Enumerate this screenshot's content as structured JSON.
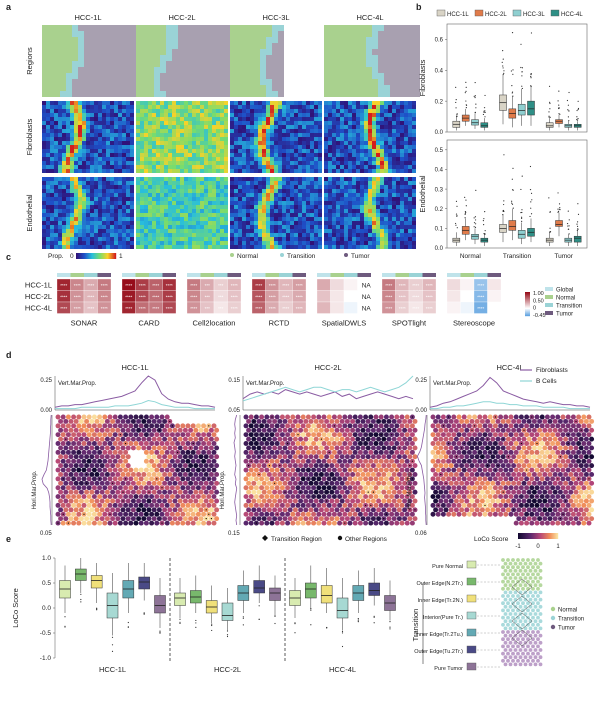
{
  "panel_letters": [
    "a",
    "b",
    "c",
    "d",
    "e"
  ],
  "colors": {
    "hcc1": "#d9d4c6",
    "hcc2": "#e07b4a",
    "hcc3": "#8fcfd0",
    "hcc4": "#2e8f86",
    "normal": "#a9d18e",
    "transition": "#9ad3d6",
    "tumor": "#6e5a7e",
    "global": "#bfe3ea"
  },
  "panel_a": {
    "columns": [
      "HCC-1L",
      "HCC-2L",
      "HCC-3L",
      "HCC-4L"
    ],
    "rows": [
      "Regions",
      "Fibroblasts",
      "Endothelial"
    ],
    "colorbar_label": "Prop.",
    "colorbar_min": "0",
    "colorbar_max": "1",
    "legend": [
      "Normal",
      "Transition",
      "Tumor"
    ]
  },
  "chart_data": [
    {
      "id": "panel_b",
      "type": "boxplot",
      "legend": [
        "HCC-1L",
        "HCC-2L",
        "HCC-3L",
        "HCC-4L"
      ],
      "categories": [
        "Normal",
        "Transition",
        "Tumor"
      ],
      "subplots": [
        {
          "ylabel": "Fibroblasts",
          "ylim": [
            0,
            0.7
          ],
          "yticks": [
            "0.0",
            "0.2",
            "0.4",
            "0.6"
          ],
          "boxes": [
            [
              [
                0.01,
                0.03,
                0.05,
                0.07,
                0.1
              ],
              [
                0.04,
                0.07,
                0.09,
                0.11,
                0.15
              ],
              [
                0.02,
                0.045,
                0.06,
                0.08,
                0.12
              ],
              [
                0.01,
                0.03,
                0.04,
                0.06,
                0.09
              ]
            ],
            [
              [
                0.05,
                0.14,
                0.19,
                0.24,
                0.37
              ],
              [
                0.03,
                0.09,
                0.12,
                0.15,
                0.23
              ],
              [
                0.04,
                0.11,
                0.14,
                0.18,
                0.28
              ],
              [
                0.04,
                0.11,
                0.15,
                0.2,
                0.29
              ]
            ],
            [
              [
                0.01,
                0.03,
                0.04,
                0.06,
                0.09
              ],
              [
                0.03,
                0.055,
                0.07,
                0.08,
                0.11
              ],
              [
                0.01,
                0.03,
                0.04,
                0.05,
                0.07
              ],
              [
                0.01,
                0.03,
                0.04,
                0.05,
                0.07
              ]
            ]
          ]
        },
        {
          "ylabel": "Endothelial",
          "ylim": [
            0,
            0.55
          ],
          "yticks": [
            "0.0",
            "0.1",
            "0.2",
            "0.3",
            "0.4",
            "0.5"
          ],
          "boxes": [
            [
              [
                0.01,
                0.03,
                0.04,
                0.05,
                0.08
              ],
              [
                0.04,
                0.07,
                0.09,
                0.11,
                0.15
              ],
              [
                0.02,
                0.045,
                0.06,
                0.07,
                0.1
              ],
              [
                0.01,
                0.03,
                0.04,
                0.05,
                0.07
              ]
            ],
            [
              [
                0.03,
                0.08,
                0.1,
                0.12,
                0.17
              ],
              [
                0.04,
                0.09,
                0.11,
                0.14,
                0.2
              ],
              [
                0.02,
                0.05,
                0.07,
                0.09,
                0.13
              ],
              [
                0.03,
                0.06,
                0.08,
                0.1,
                0.15
              ]
            ],
            [
              [
                0.01,
                0.03,
                0.04,
                0.05,
                0.08
              ],
              [
                0.06,
                0.11,
                0.12,
                0.14,
                0.18
              ],
              [
                0.01,
                0.03,
                0.04,
                0.05,
                0.07
              ],
              [
                0.01,
                0.03,
                0.05,
                0.06,
                0.09
              ]
            ]
          ]
        }
      ]
    },
    {
      "id": "panel_c",
      "type": "heatmap",
      "methods": [
        "SONAR",
        "CARD",
        "Cell2location",
        "RCTD",
        "SpatialDWLS",
        "SPOTlight",
        "Stereoscope"
      ],
      "rows": [
        "HCC-1L",
        "HCC-2L",
        "HCC-4L"
      ],
      "groups": [
        "Global",
        "Normal",
        "Transition",
        "Tumor"
      ],
      "colorbar_ticks": [
        "1.00",
        "0.50",
        "0",
        "-0.45"
      ],
      "na_label": "NA",
      "values": [
        [
          [
            0.9,
            0.5,
            0.35,
            0.55
          ],
          [
            0.85,
            0.45,
            0.3,
            0.5
          ],
          [
            0.75,
            0.4,
            0.25,
            0.45
          ]
        ],
        [
          [
            1.0,
            0.8,
            0.65,
            0.85
          ],
          [
            0.95,
            0.75,
            0.6,
            0.8
          ],
          [
            0.9,
            0.6,
            0.55,
            0.75
          ]
        ],
        [
          [
            0.55,
            0.35,
            0.2,
            0.3
          ],
          [
            0.5,
            0.3,
            0.15,
            0.25
          ],
          [
            0.45,
            0.25,
            0.1,
            0.2
          ]
        ],
        [
          [
            0.8,
            0.45,
            0.3,
            0.4
          ],
          [
            0.7,
            0.4,
            0.25,
            0.35
          ],
          [
            0.65,
            0.35,
            0.2,
            0.3
          ]
        ],
        [
          [
            0.35,
            0.15,
            0.05,
            null
          ],
          [
            0.25,
            0.1,
            0.0,
            null
          ],
          [
            0.3,
            0.1,
            -0.05,
            null
          ]
        ],
        [
          [
            0.55,
            0.3,
            0.2,
            0.3
          ],
          [
            0.5,
            0.25,
            0.15,
            0.25
          ],
          [
            0.45,
            0.2,
            0.1,
            0.2
          ]
        ],
        [
          [
            0.15,
            0.05,
            -0.3,
            0.1
          ],
          [
            0.1,
            0.0,
            -0.35,
            0.05
          ],
          [
            0.05,
            -0.05,
            -0.4,
            0.0
          ]
        ]
      ],
      "stars": [
        [
          [
            "****",
            "****",
            "****",
            "****"
          ],
          [
            "****",
            "****",
            "****",
            "****"
          ],
          [
            "****",
            "****",
            "****",
            "****"
          ]
        ],
        [
          [
            "****",
            "****",
            "****",
            "****"
          ],
          [
            "****",
            "****",
            "****",
            "****"
          ],
          [
            "****",
            "****",
            "****",
            "****"
          ]
        ],
        [
          [
            "****",
            "***",
            "***",
            "****"
          ],
          [
            "****",
            "***",
            "***",
            "****"
          ],
          [
            "****",
            "***",
            "***",
            "****"
          ]
        ],
        [
          [
            "****",
            "****",
            "****",
            "****"
          ],
          [
            "****",
            "****",
            "****",
            "****"
          ],
          [
            "****",
            "****",
            "****",
            "****"
          ]
        ],
        [
          [
            "",
            "",
            "",
            ""
          ],
          [
            "",
            "",
            "",
            ""
          ],
          [
            "",
            "",
            "",
            ""
          ]
        ],
        [
          [
            "****",
            "****",
            "****",
            "****"
          ],
          [
            "****",
            "****",
            "****",
            "****"
          ],
          [
            "****",
            "****",
            "****",
            "****"
          ]
        ],
        [
          [
            "",
            "",
            "****",
            ""
          ],
          [
            "",
            "",
            "****",
            ""
          ],
          [
            "",
            "",
            "****",
            ""
          ]
        ]
      ]
    },
    {
      "id": "panel_d",
      "type": "line+spatial",
      "samples": [
        "HCC-1L",
        "HCC-2L",
        "HCC-4L"
      ],
      "top_label": "Vert.Mar.Prop.",
      "side_label": "Hori.Mar.Prop.",
      "legend": [
        "Fibroblasts",
        "B Cells"
      ],
      "ytop": [
        [
          "0.25",
          "0.00"
        ],
        [
          "0.15",
          "0.05"
        ],
        [
          "0.25",
          "0.00"
        ]
      ],
      "xside": [
        "0.05",
        "0.15",
        "0.06"
      ],
      "bottom_legend": [
        "Transition Region",
        "Other Regions"
      ],
      "colorbar_label": "LoCo Score",
      "colorbar_ticks": [
        "-1",
        "0",
        "1"
      ],
      "fib_curves": [
        [
          0.02,
          0.03,
          0.03,
          0.04,
          0.04,
          0.05,
          0.06,
          0.07,
          0.08,
          0.09,
          0.1,
          0.12,
          0.14,
          0.2,
          0.26,
          0.22,
          0.12,
          0.08,
          0.06,
          0.05,
          0.05,
          0.04,
          0.03,
          0.03,
          0.02
        ],
        [
          0.05,
          0.07,
          0.08,
          0.07,
          0.08,
          0.07,
          0.09,
          0.08,
          0.07,
          0.08,
          0.07,
          0.06,
          0.07,
          0.08,
          0.06,
          0.07,
          0.05,
          0.06,
          0.07,
          0.08,
          0.07,
          0.06,
          0.05,
          0.06,
          0.05
        ],
        [
          0.02,
          0.03,
          0.05,
          0.06,
          0.08,
          0.1,
          0.12,
          0.14,
          0.18,
          0.24,
          0.2,
          0.14,
          0.12,
          0.1,
          0.08,
          0.07,
          0.06,
          0.05,
          0.06,
          0.05,
          0.04,
          0.04,
          0.03,
          0.03,
          0.02
        ]
      ],
      "b_curves": [
        [
          0.01,
          0.01,
          0.01,
          0.01,
          0.02,
          0.02,
          0.02,
          0.02,
          0.02,
          0.03,
          0.03,
          0.03,
          0.04,
          0.05,
          0.07,
          0.06,
          0.04,
          0.03,
          0.02,
          0.02,
          0.02,
          0.01,
          0.01,
          0.01,
          0.01
        ],
        [
          0.04,
          0.05,
          0.06,
          0.07,
          0.08,
          0.09,
          0.1,
          0.09,
          0.08,
          0.09,
          0.1,
          0.1,
          0.09,
          0.08,
          0.09,
          0.09,
          0.08,
          0.09,
          0.1,
          0.09,
          0.08,
          0.09,
          0.1,
          0.12,
          0.15
        ],
        [
          0.01,
          0.01,
          0.02,
          0.02,
          0.03,
          0.03,
          0.04,
          0.05,
          0.06,
          0.06,
          0.05,
          0.05,
          0.04,
          0.04,
          0.03,
          0.03,
          0.03,
          0.02,
          0.02,
          0.02,
          0.02,
          0.01,
          0.01,
          0.01,
          0.01
        ]
      ]
    },
    {
      "id": "panel_e",
      "type": "boxplot",
      "ylabel": "LoCo Score",
      "ylim": [
        -1.0,
        1.0
      ],
      "yticks": [
        "1.0",
        "0.5",
        "0.0",
        "-0.5",
        "-1.0"
      ],
      "groups": [
        "HCC-1L",
        "HCC-2L",
        "HCC-4L"
      ],
      "legend_title": "Transition",
      "categories": [
        "Pure Normal",
        "Outer Edge(N.2Tr.)",
        "Inner Edge(Tr.2N.)",
        "Interior(Pure Tr.)",
        "Inner Edge(Tr.2Tu.)",
        "Outer Edge(Tu.2Tr.)",
        "Pure Tumor"
      ],
      "box_colors": [
        "#d8ebb0",
        "#78b86c",
        "#f0e07a",
        "#a7d9d3",
        "#63a9b4",
        "#4a4a86",
        "#8d7397"
      ],
      "region_legend": [
        "Normal",
        "Transition",
        "Tumor"
      ],
      "boxes": [
        [
          [
            -0.1,
            0.2,
            0.38,
            0.55,
            0.85
          ],
          [
            0.3,
            0.55,
            0.68,
            0.78,
            1.0
          ],
          [
            0.1,
            0.4,
            0.55,
            0.65,
            0.9
          ],
          [
            -0.55,
            -0.2,
            0.05,
            0.3,
            0.7
          ],
          [
            -0.1,
            0.2,
            0.38,
            0.55,
            0.9
          ],
          [
            0.15,
            0.38,
            0.52,
            0.62,
            0.9
          ],
          [
            -0.4,
            -0.1,
            0.05,
            0.25,
            0.6
          ]
        ],
        [
          [
            -0.2,
            0.05,
            0.2,
            0.3,
            0.6
          ],
          [
            -0.1,
            0.1,
            0.22,
            0.35,
            0.65
          ],
          [
            -0.3,
            -0.1,
            0.02,
            0.15,
            0.45
          ],
          [
            -0.45,
            -0.25,
            -0.15,
            0.1,
            0.4
          ],
          [
            -0.1,
            0.15,
            0.3,
            0.45,
            0.75
          ],
          [
            0.1,
            0.3,
            0.4,
            0.55,
            0.85
          ],
          [
            -0.15,
            0.15,
            0.3,
            0.4,
            0.65
          ]
        ],
        [
          [
            -0.2,
            0.05,
            0.2,
            0.35,
            0.6
          ],
          [
            0.0,
            0.2,
            0.38,
            0.5,
            0.85
          ],
          [
            -0.1,
            0.1,
            0.25,
            0.45,
            0.8
          ],
          [
            -0.45,
            -0.2,
            -0.05,
            0.2,
            0.6
          ],
          [
            -0.1,
            0.15,
            0.3,
            0.45,
            0.75
          ],
          [
            0.05,
            0.25,
            0.35,
            0.5,
            0.8
          ],
          [
            -0.25,
            -0.05,
            0.1,
            0.25,
            0.55
          ]
        ]
      ]
    }
  ]
}
